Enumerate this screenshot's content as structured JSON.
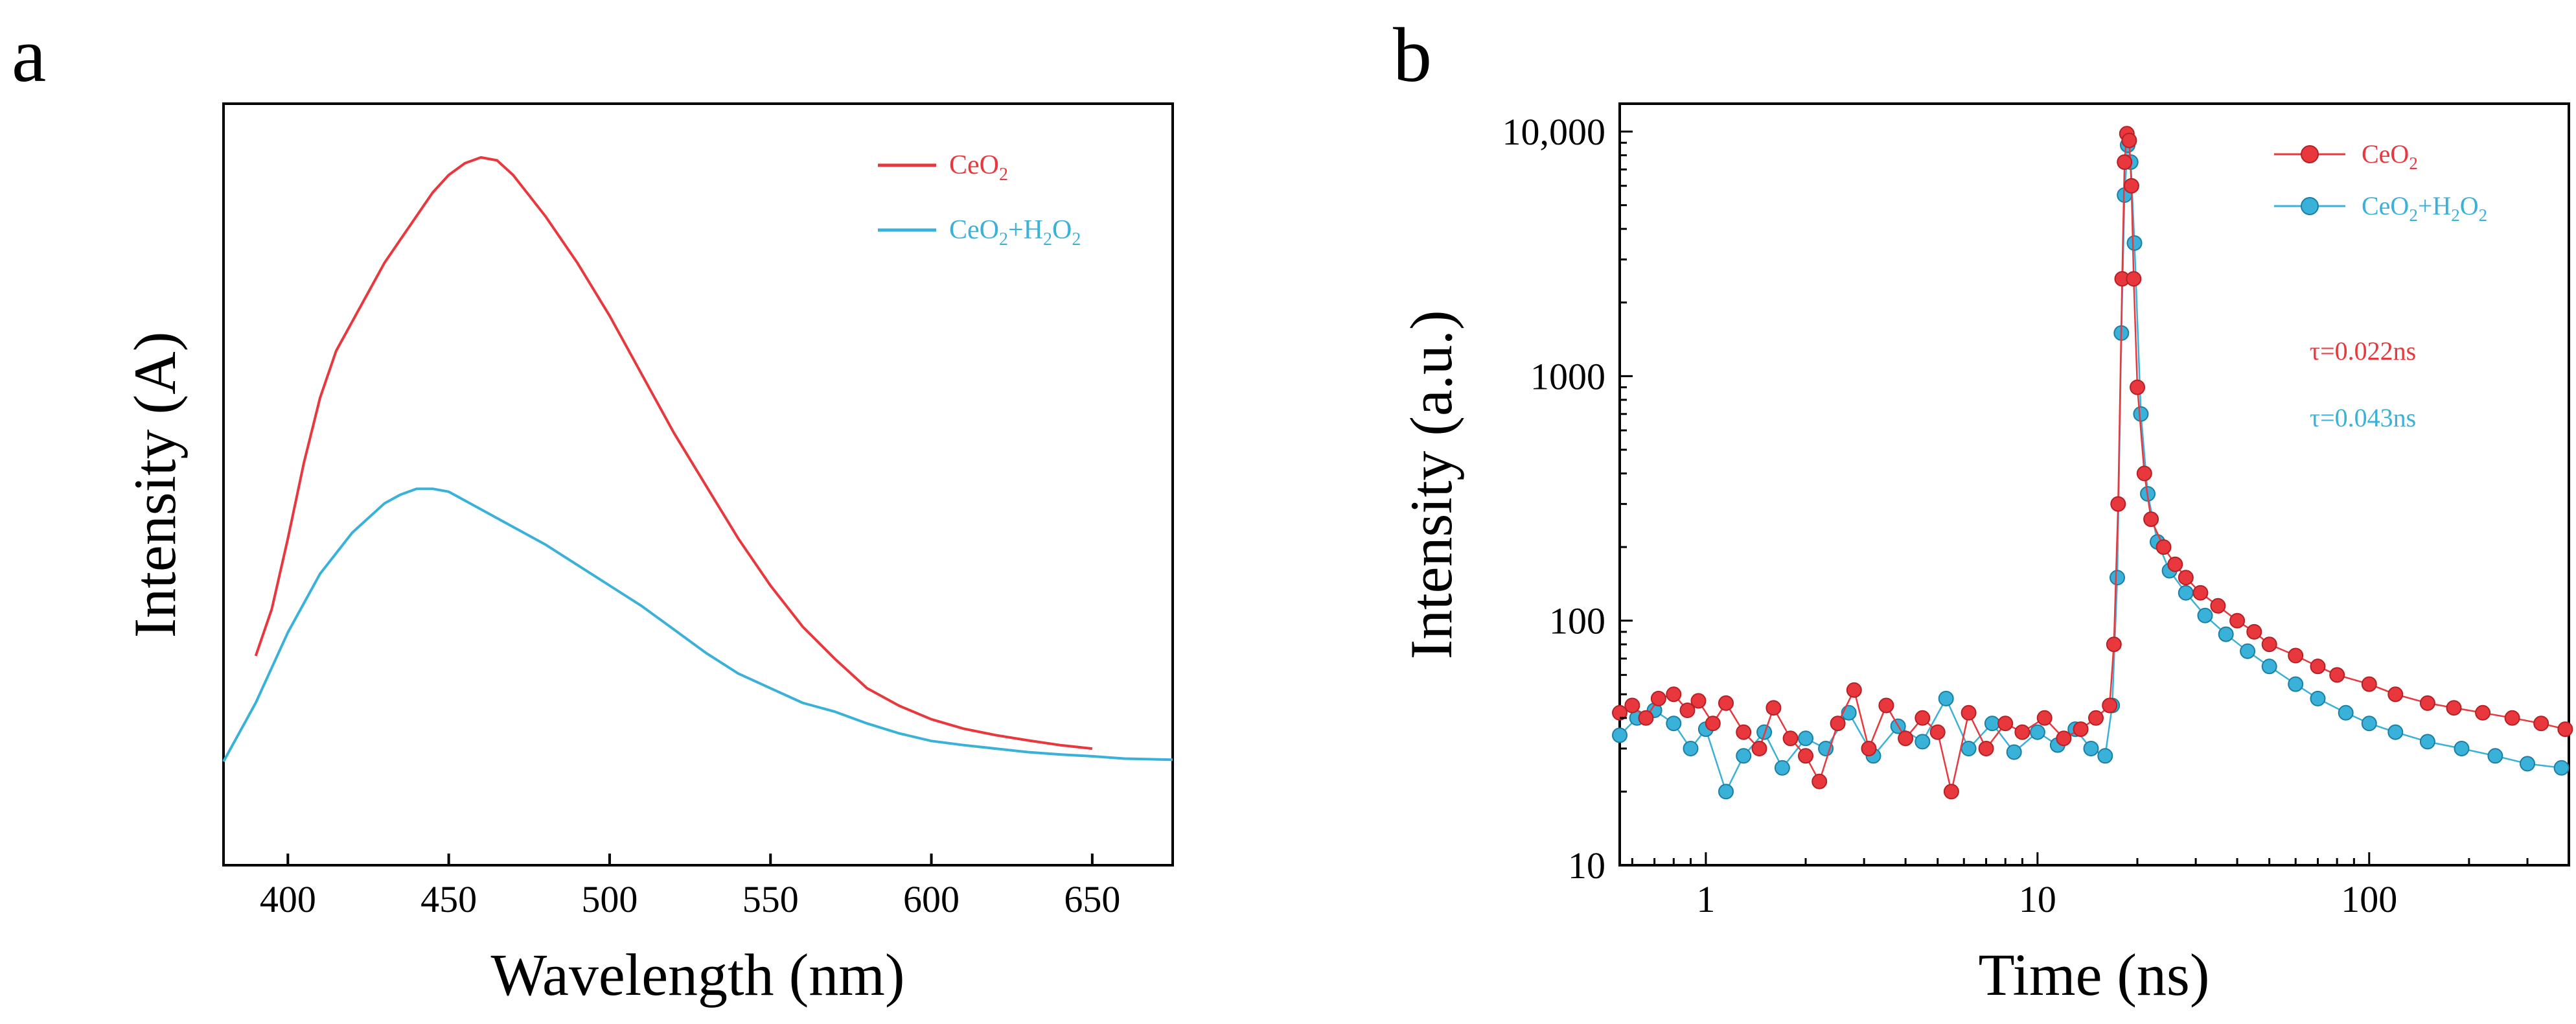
{
  "panels": {
    "a": {
      "label": "a"
    },
    "b": {
      "label": "b"
    }
  },
  "colors": {
    "red": "#e8383d",
    "blue": "#3ab1d9",
    "axis": "#000000"
  },
  "chart_data": [
    {
      "panel": "a",
      "type": "line",
      "title": "",
      "xlabel": "Wavelength (nm)",
      "ylabel": "Intensity (A)",
      "xlim": [
        380,
        675
      ],
      "ylim": [
        0,
        100
      ],
      "xticks": [
        400,
        450,
        500,
        550,
        600,
        650
      ],
      "xtick_labels": [
        "400",
        "450",
        "500",
        "550",
        "600",
        "650"
      ],
      "yticks_shown": false,
      "legend_position": "top-right",
      "series": [
        {
          "name": "CeO2",
          "legend_main": "CeO",
          "legend_sub": "2",
          "color": "#e8383d",
          "x": [
            390,
            395,
            400,
            405,
            410,
            415,
            420,
            425,
            430,
            435,
            440,
            445,
            450,
            455,
            460,
            465,
            470,
            475,
            480,
            490,
            500,
            510,
            520,
            530,
            540,
            550,
            560,
            570,
            580,
            590,
            600,
            610,
            620,
            630,
            640,
            650
          ],
          "y": [
            18,
            26,
            38,
            51,
            62,
            70,
            75,
            80,
            85,
            89,
            93,
            97,
            100,
            102,
            103,
            102.5,
            100,
            96.5,
            93,
            85,
            76,
            66,
            56,
            47,
            38,
            30,
            23,
            17.5,
            12.5,
            9.5,
            7.2,
            5.6,
            4.5,
            3.6,
            2.8,
            2.2
          ]
        },
        {
          "name": "CeO2+H2O2",
          "legend_main": "CeO",
          "legend_sub": "2",
          "legend_plus": "+H",
          "legend_sub2": "2",
          "legend_o": "O",
          "legend_sub3": "2",
          "color": "#3ab1d9",
          "x": [
            380,
            390,
            400,
            410,
            420,
            430,
            435,
            440,
            445,
            450,
            460,
            470,
            480,
            490,
            500,
            510,
            520,
            530,
            540,
            550,
            560,
            570,
            580,
            590,
            600,
            610,
            620,
            630,
            640,
            650,
            660,
            675
          ],
          "y": [
            0,
            10,
            22,
            32,
            39,
            44,
            45.5,
            46.5,
            46.5,
            46,
            43,
            40,
            37,
            33.5,
            30,
            26.5,
            22.5,
            18.5,
            15,
            12.5,
            10,
            8.5,
            6.5,
            4.8,
            3.5,
            2.8,
            2.2,
            1.6,
            1.2,
            0.9,
            0.5,
            0.3
          ]
        }
      ]
    },
    {
      "panel": "b",
      "type": "scatter",
      "title": "",
      "xlabel": "Time (ns)",
      "ylabel": "Intensity (a.u.)",
      "xscale": "log",
      "yscale": "log",
      "xlim": [
        0.55,
        400
      ],
      "ylim": [
        10,
        13000
      ],
      "xticks": [
        1,
        10,
        100
      ],
      "xtick_labels": [
        "1",
        "10",
        "100"
      ],
      "yticks": [
        10,
        100,
        1000,
        10000
      ],
      "ytick_labels": [
        "10",
        "100",
        "1000",
        "10,000"
      ],
      "legend_position": "top-right",
      "annotations": [
        {
          "text": "τ=0.022ns",
          "color": "#e8383d"
        },
        {
          "text": "τ=0.043ns",
          "color": "#3ab1d9"
        }
      ],
      "series": [
        {
          "name": "CeO2",
          "legend_main": "CeO",
          "legend_sub": "2",
          "color": "#e8383d",
          "marker": "circle",
          "x": [
            0.55,
            0.6,
            0.66,
            0.72,
            0.8,
            0.88,
            0.95,
            1.05,
            1.15,
            1.3,
            1.45,
            1.6,
            1.8,
            2.0,
            2.2,
            2.5,
            2.8,
            3.1,
            3.5,
            4.0,
            4.5,
            5.0,
            5.5,
            6.2,
            7.0,
            8.0,
            9.0,
            10.5,
            12.0,
            13.5,
            15.0,
            16.5,
            17.0,
            17.5,
            18.0,
            18.3,
            18.6,
            18.9,
            19.2,
            19.5,
            20.0,
            21.0,
            22.0,
            24.0,
            26.0,
            28.0,
            31.0,
            35.0,
            40.0,
            45.0,
            50.0,
            60.0,
            70.0,
            80.0,
            100.0,
            120.0,
            150.0,
            180.0,
            220.0,
            270.0,
            330.0,
            390.0
          ],
          "y": [
            42,
            45,
            40,
            48,
            50,
            43,
            47,
            38,
            46,
            35,
            30,
            44,
            33,
            28,
            22,
            38,
            52,
            30,
            45,
            33,
            40,
            35,
            20,
            42,
            30,
            38,
            35,
            40,
            33,
            36,
            40,
            45,
            80,
            300,
            2500,
            7500,
            9800,
            9200,
            6000,
            2500,
            900,
            400,
            260,
            200,
            170,
            150,
            130,
            115,
            100,
            90,
            80,
            72,
            65,
            60,
            55,
            50,
            46,
            44,
            42,
            40,
            38,
            36
          ]
        },
        {
          "name": "CeO2+H2O2",
          "legend_main": "CeO",
          "legend_sub": "2",
          "legend_plus": "+H",
          "legend_sub2": "2",
          "legend_o": "O",
          "legend_sub3": "2",
          "color": "#3ab1d9",
          "marker": "circle",
          "x": [
            0.55,
            0.62,
            0.7,
            0.8,
            0.9,
            1.0,
            1.15,
            1.3,
            1.5,
            1.7,
            2.0,
            2.3,
            2.7,
            3.2,
            3.8,
            4.5,
            5.3,
            6.2,
            7.3,
            8.5,
            10.0,
            11.5,
            13.0,
            14.5,
            16.0,
            16.8,
            17.4,
            17.9,
            18.3,
            18.7,
            19.1,
            19.6,
            20.5,
            21.5,
            23.0,
            25.0,
            28.0,
            32.0,
            37.0,
            43.0,
            50.0,
            60.0,
            70.0,
            85.0,
            100.0,
            120.0,
            150.0,
            190.0,
            240.0,
            300.0,
            380.0
          ],
          "y": [
            34,
            40,
            43,
            38,
            30,
            36,
            20,
            28,
            35,
            25,
            33,
            30,
            42,
            28,
            37,
            32,
            48,
            30,
            38,
            29,
            35,
            31,
            36,
            30,
            28,
            45,
            150,
            1500,
            5500,
            8800,
            7500,
            3500,
            700,
            330,
            210,
            160,
            130,
            105,
            88,
            75,
            65,
            55,
            48,
            42,
            38,
            35,
            32,
            30,
            28,
            26,
            25
          ]
        }
      ]
    }
  ]
}
